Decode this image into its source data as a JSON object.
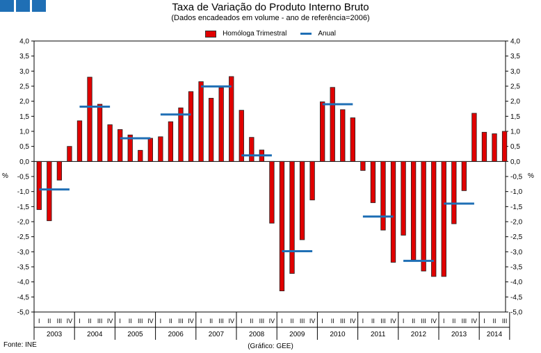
{
  "chart_data": {
    "type": "bar",
    "title": "Taxa de Variação do Produto Interno Bruto",
    "subtitle": "(Dados encadeados em volume - ano de referência=2006)",
    "ylabel": "%",
    "ylim": [
      -5.0,
      4.0
    ],
    "yticks": [
      "4,0",
      "3,5",
      "3,0",
      "2,5",
      "2,0",
      "1,5",
      "1,0",
      "0,5",
      "0,0",
      "-0,5",
      "-1,0",
      "-1,5",
      "-2,0",
      "-2,5",
      "-3,0",
      "-3,5",
      "-4,0",
      "-4,5",
      "-5,0"
    ],
    "quarter_labels": [
      "I",
      "II",
      "III",
      "IV"
    ],
    "years": [
      "2003",
      "2004",
      "2005",
      "2006",
      "2007",
      "2008",
      "2009",
      "2010",
      "2011",
      "2012",
      "2013",
      "2014"
    ],
    "series": [
      {
        "name": "Homóloga Trimestral",
        "type": "bar",
        "color": "#e00000",
        "values": [
          -1.6,
          -1.97,
          -0.62,
          0.5,
          1.35,
          2.8,
          1.9,
          1.22,
          1.06,
          0.88,
          0.37,
          0.77,
          0.82,
          1.32,
          1.78,
          2.32,
          2.65,
          2.1,
          2.45,
          2.82,
          1.7,
          0.8,
          0.38,
          -2.05,
          -4.3,
          -3.72,
          -2.6,
          -1.28,
          1.98,
          2.46,
          1.72,
          1.45,
          -0.3,
          -1.37,
          -2.28,
          -3.35,
          -2.45,
          -3.27,
          -3.64,
          -3.82,
          -3.82,
          -2.07,
          -0.97,
          1.6,
          0.97,
          0.92,
          1.0
        ]
      },
      {
        "name": "Anual",
        "type": "line",
        "color": "#1f6fb5",
        "values": [
          -0.93,
          1.82,
          0.77,
          1.56,
          2.49,
          0.2,
          -2.98,
          1.9,
          -1.83,
          -3.3,
          -1.4
        ]
      }
    ]
  },
  "footer": {
    "source": "Fonte: INE",
    "credit": "(Gráfico: GEE)"
  },
  "unit_left": "%",
  "unit_right": "%"
}
